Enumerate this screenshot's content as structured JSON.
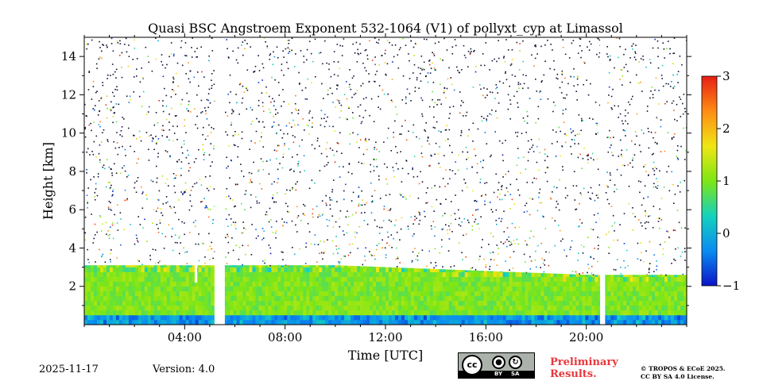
{
  "chart_data": {
    "type": "heatmap",
    "title": "Quasi BSC Angstroem Exponent 532-1064 (V1) of pollyxt_cyp at Limassol",
    "xlabel": "Time [UTC]",
    "ylabel": "Height [km]",
    "x_unit": "hours UTC",
    "xlim": [
      0,
      24
    ],
    "ylim": [
      0,
      15
    ],
    "x_ticks": [
      4,
      8,
      12,
      16,
      20
    ],
    "x_tick_labels": [
      "04:00",
      "08:00",
      "12:00",
      "16:00",
      "20:00"
    ],
    "y_ticks": [
      2,
      4,
      6,
      8,
      10,
      12,
      14
    ],
    "y_tick_labels": [
      "2",
      "4",
      "6",
      "8",
      "10",
      "12",
      "14"
    ],
    "colorbar": {
      "range": [
        -1,
        3
      ],
      "ticks": [
        -1,
        0,
        1,
        2,
        3
      ],
      "tick_labels": [
        "−1",
        "0",
        "1",
        "2",
        "3"
      ],
      "colormap": "jet",
      "colors": [
        "#0a14c8",
        "#0a8cf0",
        "#14d2be",
        "#7ee614",
        "#f0e614",
        "#ff8c14",
        "#e61e14"
      ]
    },
    "boundary_layer_top_km": [
      {
        "t": 0,
        "h": 3.1
      },
      {
        "t": 4,
        "h": 3.1
      },
      {
        "t": 6,
        "h": 3.1
      },
      {
        "t": 10,
        "h": 3.1
      },
      {
        "t": 12,
        "h": 3.0
      },
      {
        "t": 14,
        "h": 2.9
      },
      {
        "t": 16,
        "h": 2.8
      },
      {
        "t": 18,
        "h": 2.7
      },
      {
        "t": 20,
        "h": 2.6
      },
      {
        "t": 24,
        "h": 2.6
      }
    ],
    "typical_value_boundary_layer": 1.0,
    "no_data_gaps_hours": [
      [
        5.2,
        5.6
      ],
      [
        20.55,
        20.75
      ]
    ],
    "low_level_gap_hours": [
      [
        4.4,
        4.5
      ]
    ]
  },
  "footer": {
    "date": "2025-11-17",
    "version": "Version: 4.0",
    "preliminary_line1": "Preliminary",
    "preliminary_line2": "Results.",
    "copyright_line1": "© TROPOS & ECoE 2025.",
    "copyright_line2": "CC BY SA 4.0 License.",
    "license_badge": {
      "cc": "cc",
      "by": "BY",
      "sa": "SA"
    }
  }
}
